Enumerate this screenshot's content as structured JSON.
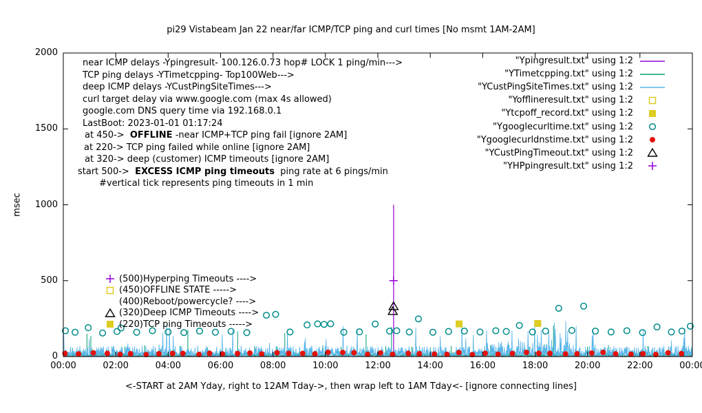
{
  "chart_data": {
    "type": "line",
    "title": "pi29 Vistabeam Jan 22  near/far ICMP/TCP ping and curl times [No msmt 1AM-2AM]",
    "ylabel": "msec",
    "xlabel": "<-START at 2AM Yday, right to 12AM Tday->, then wrap left to 1AM Tday<- [ignore connecting lines]",
    "xlim": [
      0,
      24
    ],
    "ylim": [
      0,
      2000
    ],
    "ytick_values": [
      0,
      500,
      1000,
      1500,
      2000
    ],
    "xtick_labels": [
      "00:00",
      "02:00",
      "04:00",
      "06:00",
      "08:00",
      "10:00",
      "12:00",
      "14:00",
      "16:00",
      "18:00",
      "20:00",
      "22:00",
      "00:00"
    ],
    "noise_seed": 1337,
    "series": [
      {
        "name": "Ypingresult",
        "color": "#9400d3",
        "style": "line",
        "baseline": {
          "low": 0,
          "high": 8,
          "step": 0.03
        },
        "impulses": [
          [
            12.6,
            1000
          ]
        ]
      },
      {
        "name": "YTimetcpping",
        "color": "#009e73",
        "style": "line",
        "baseline": {
          "low": 2,
          "high": 30,
          "step": 0.028
        },
        "impulses": [
          [
            0.35,
            55
          ],
          [
            0.9,
            150
          ],
          [
            1.05,
            135
          ],
          [
            2.35,
            65
          ],
          [
            3.1,
            75
          ],
          [
            3.7,
            50
          ],
          [
            4.45,
            70
          ],
          [
            4.75,
            175
          ],
          [
            5.5,
            60
          ],
          [
            6.2,
            55
          ],
          [
            6.65,
            165
          ],
          [
            7.3,
            70
          ],
          [
            8.15,
            65
          ],
          [
            8.45,
            155
          ],
          [
            9.2,
            60
          ],
          [
            9.9,
            75
          ],
          [
            10.6,
            65
          ],
          [
            11.2,
            60
          ],
          [
            11.55,
            145
          ],
          [
            12.3,
            70
          ],
          [
            12.52,
            195
          ],
          [
            13.3,
            65
          ],
          [
            14.0,
            60
          ],
          [
            14.8,
            70
          ],
          [
            15.5,
            65
          ],
          [
            16.3,
            75
          ],
          [
            17.0,
            70
          ],
          [
            17.8,
            65
          ],
          [
            18.35,
            80
          ],
          [
            18.7,
            205
          ],
          [
            19.3,
            70
          ],
          [
            20.0,
            65
          ],
          [
            20.8,
            75
          ],
          [
            21.5,
            60
          ],
          [
            22.3,
            70
          ],
          [
            23.1,
            65
          ],
          [
            23.7,
            75
          ]
        ]
      },
      {
        "name": "YCustPingSiteTimes",
        "color": "#56b4e9",
        "style": "line",
        "noise": {
          "low": 12,
          "high": 72,
          "spike_p": 0.05,
          "spike_max": 205,
          "step": 0.018,
          "busy": {
            "from": 16.1,
            "to": 19.6,
            "high": 100,
            "spike_p": 0.13,
            "spike_max": 235
          }
        }
      },
      {
        "name": "Yofflineresult",
        "color": "#ddcc22",
        "style": "square-open",
        "points": []
      },
      {
        "name": "Ytcpoff_record",
        "color": "#ddcc22",
        "style": "square-filled",
        "points": [
          [
            15.1,
            215
          ],
          [
            18.1,
            218
          ]
        ]
      },
      {
        "name": "Ygooglecurltime",
        "color": "#008b8b",
        "style": "circle-open",
        "points": [
          [
            0.08,
            170
          ],
          [
            0.45,
            160
          ],
          [
            0.95,
            190
          ],
          [
            1.5,
            155
          ],
          [
            2.05,
            165
          ],
          [
            2.2,
            188
          ],
          [
            2.8,
            160
          ],
          [
            3.4,
            170
          ],
          [
            4.0,
            162
          ],
          [
            4.6,
            158
          ],
          [
            5.2,
            168
          ],
          [
            5.8,
            160
          ],
          [
            6.4,
            166
          ],
          [
            7.0,
            158
          ],
          [
            7.75,
            272
          ],
          [
            8.1,
            278
          ],
          [
            8.65,
            162
          ],
          [
            9.3,
            208
          ],
          [
            9.7,
            215
          ],
          [
            9.95,
            212
          ],
          [
            10.2,
            216
          ],
          [
            10.7,
            160
          ],
          [
            11.3,
            163
          ],
          [
            11.9,
            214
          ],
          [
            12.45,
            168
          ],
          [
            12.72,
            170
          ],
          [
            13.2,
            162
          ],
          [
            13.55,
            248
          ],
          [
            14.1,
            160
          ],
          [
            14.7,
            165
          ],
          [
            15.3,
            168
          ],
          [
            15.9,
            162
          ],
          [
            16.5,
            170
          ],
          [
            16.9,
            165
          ],
          [
            17.4,
            205
          ],
          [
            17.9,
            162
          ],
          [
            18.4,
            168
          ],
          [
            18.9,
            318
          ],
          [
            19.4,
            172
          ],
          [
            19.85,
            332
          ],
          [
            20.3,
            168
          ],
          [
            20.9,
            162
          ],
          [
            21.5,
            170
          ],
          [
            22.1,
            158
          ],
          [
            22.65,
            195
          ],
          [
            23.2,
            162
          ],
          [
            23.6,
            168
          ],
          [
            23.92,
            200
          ]
        ]
      },
      {
        "name": "Ygooglecurldnstime",
        "color": "#e3120b",
        "style": "circle-filled",
        "points_gen": {
          "start": 0.12,
          "step": 0.5,
          "count": 48,
          "ymin": 13,
          "ymax": 30,
          "jitter": 0.12
        }
      },
      {
        "name": "YCustPingTimeout",
        "color": "#000000",
        "style": "triangle-open",
        "points": [
          [
            12.6,
            332
          ],
          [
            12.57,
            300
          ]
        ]
      },
      {
        "name": "YHPpingresult",
        "color": "#9400d3",
        "style": "plus",
        "points": [
          [
            12.6,
            500
          ]
        ]
      }
    ],
    "legend": {
      "items": [
        {
          "name": "Ypingresult",
          "label": "\"Ypingresult.txt\" using 1:2",
          "style": "line",
          "color": "#9400d3"
        },
        {
          "name": "YTimetcpping",
          "label": "\"YTimetcpping.txt\" using 1:2",
          "style": "line",
          "color": "#009e73"
        },
        {
          "name": "YCustPingSiteTimes",
          "label": "\"YCustPingSiteTimes.txt\" using 1:2",
          "style": "line",
          "color": "#56b4e9"
        },
        {
          "name": "Yofflineresult",
          "label": "\"Yofflineresult.txt\" using 1:2",
          "style": "square-open",
          "color": "#ddcc22"
        },
        {
          "name": "Ytcpoff_record",
          "label": "\"Ytcpoff_record.txt\" using 1:2",
          "style": "square-filled",
          "color": "#ddcc22"
        },
        {
          "name": "Ygooglecurltime",
          "label": "\"Ygooglecurltime.txt\" using 1:2",
          "style": "circle-open",
          "color": "#008b8b"
        },
        {
          "name": "Ygooglecurldnstime",
          "label": "\"Ygooglecurldnstime.txt\" using 1:2",
          "style": "circle-filled",
          "color": "#e3120b"
        },
        {
          "name": "YCustPingTimeout",
          "label": "\"YCustPingTimeout.txt\" using 1:2",
          "style": "triangle-open",
          "color": "#000000"
        },
        {
          "name": "YHPpingresult",
          "label": "\"YHPpingresult.txt\" using 1:2",
          "style": "plus",
          "color": "#9400d3"
        }
      ]
    },
    "annotations": {
      "lines": [
        {
          "parts": [
            {
              "t": "near ICMP delays -Ypingresult- 100.126.0.73 hop# LOCK 1 ping/min--->"
            }
          ]
        },
        {
          "parts": [
            {
              "t": "TCP ping delays -YTimetcpping- Top100Web--->"
            }
          ]
        },
        {
          "parts": [
            {
              "t": "deep ICMP delays -YCustPingSiteTimes--->"
            }
          ]
        },
        {
          "parts": [
            {
              "t": "curl target delay via www.google.com (max 4s allowed)"
            }
          ]
        },
        {
          "parts": [
            {
              "t": "google.com DNS query time via 192.168.0.1"
            }
          ]
        },
        {
          "parts": [
            {
              "t": "LastBoot: 2023-01-01 01:17:24"
            }
          ]
        },
        {
          "indent": 3,
          "parts": [
            {
              "t": "at 450->  "
            },
            {
              "t": "OFFLINE",
              "b": true
            },
            {
              "t": " -near ICMP+TCP ping fail [ignore 2AM]"
            }
          ]
        },
        {
          "indent": 2,
          "parts": [
            {
              "t": "at 220-> TCP ping failed while online [ignore 2AM]"
            }
          ]
        },
        {
          "indent": 3,
          "parts": [
            {
              "t": "at 320-> deep (customer) ICMP timeouts [ignore 2AM]"
            }
          ]
        },
        {
          "indent": -7,
          "parts": [
            {
              "t": "start 500->  "
            },
            {
              "t": "EXCESS ICMP ping timeouts",
              "b": true
            },
            {
              "t": "  ping rate at 6 pings/min"
            }
          ]
        },
        {
          "indent": 24,
          "parts": [
            {
              "t": "#vertical tick represents ping timeouts in 1 min"
            }
          ]
        }
      ]
    },
    "marker_legend": [
      {
        "text": "(500)Hyperping Timeouts ---->",
        "marker": "plus",
        "color": "#9400d3",
        "value": 512
      },
      {
        "text": "(450)OFFLINE STATE ----->",
        "marker": "square-open",
        "color": "#ddcc22",
        "value": 437
      },
      {
        "text": "(400)Reboot/powercycle? ---->",
        "marker": "none",
        "color": "#000000",
        "value": 362
      },
      {
        "text": "(320)Deep ICMP Timeouts ---->",
        "marker": "triangle-open",
        "color": "#000000",
        "value": 287
      },
      {
        "text": "(220)TCP ping Timeouts ----->",
        "marker": "square-filled",
        "color": "#ddcc22",
        "value": 212
      }
    ]
  }
}
